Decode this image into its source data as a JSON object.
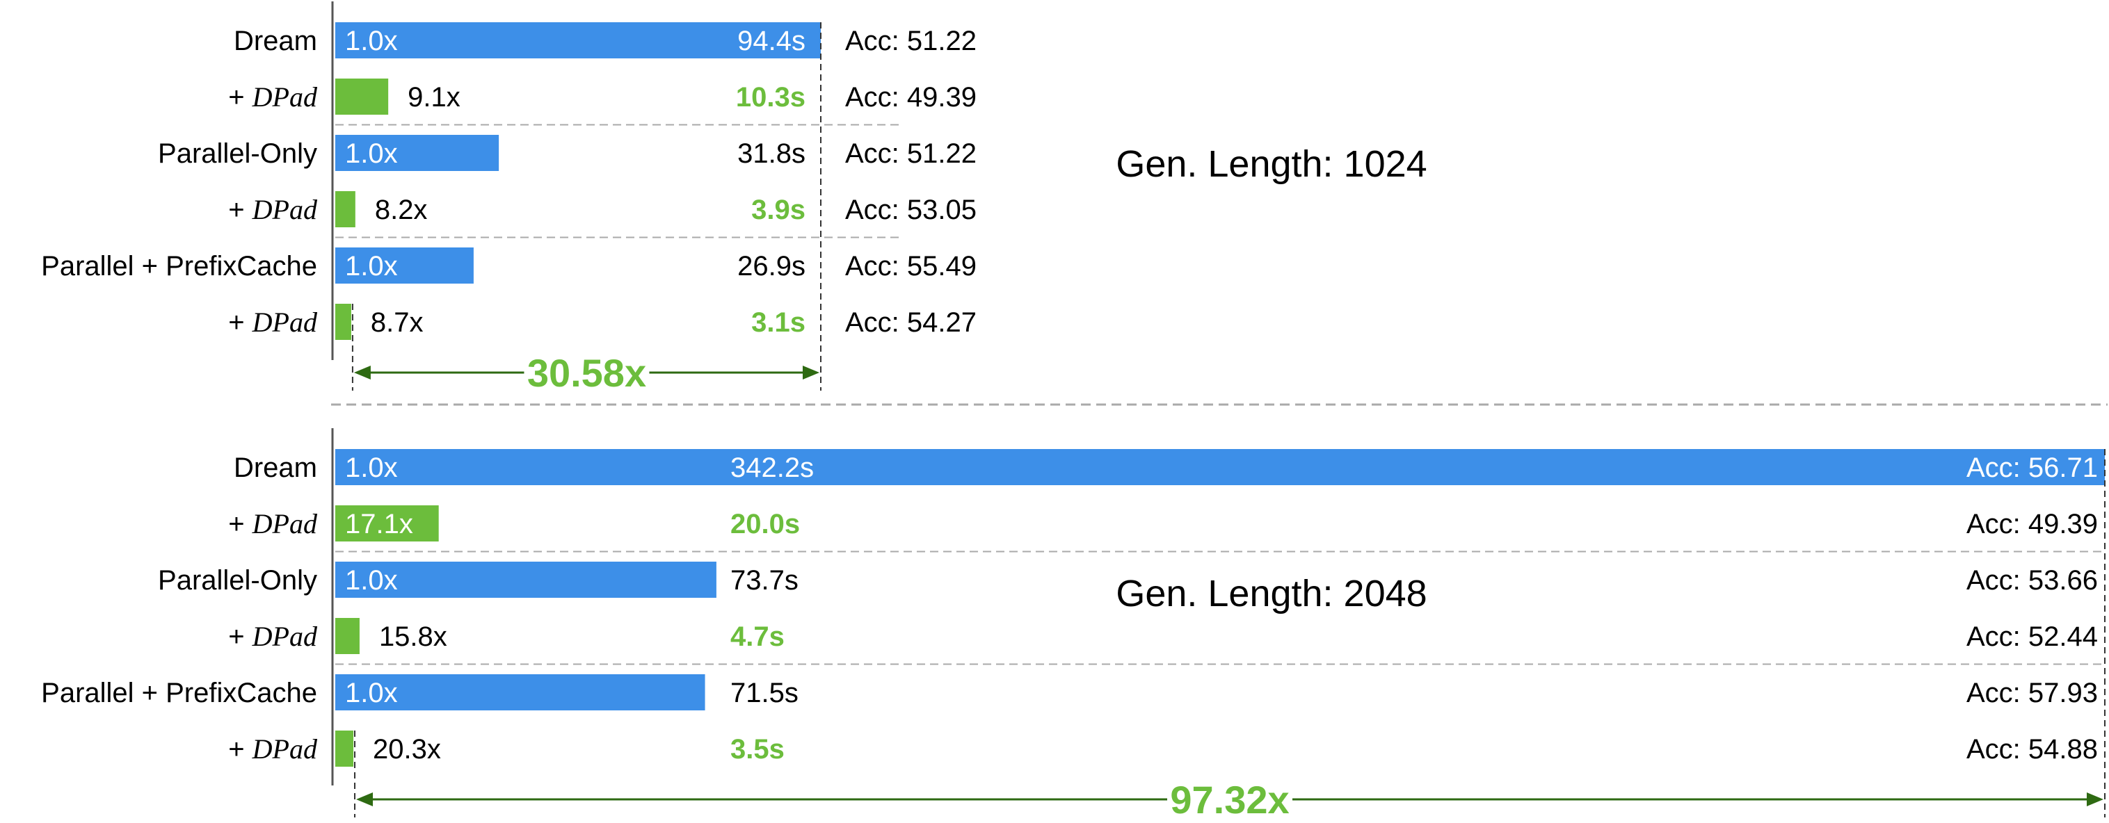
{
  "chart_data": [
    {
      "type": "bar",
      "title": "Gen. Length: 1024",
      "x_max_seconds": 94.4,
      "categories": [
        "Dream",
        "+ DPad",
        "Parallel-Only",
        "+ DPad",
        "Parallel + PrefixCache",
        "+ DPad"
      ],
      "rows": [
        {
          "label": "Dream",
          "dpad": false,
          "time": 94.4,
          "time_label": "94.4s",
          "speedup": "1.0x",
          "acc": "Acc: 51.22"
        },
        {
          "label": "+ ",
          "dpad": true,
          "dpad_name": "DPad",
          "time": 10.3,
          "time_label": "10.3s",
          "speedup": "9.1x",
          "acc": "Acc: 49.39"
        },
        {
          "label": "Parallel-Only",
          "dpad": false,
          "time": 31.8,
          "time_label": "31.8s",
          "speedup": "1.0x",
          "acc": "Acc: 51.22"
        },
        {
          "label": "+ ",
          "dpad": true,
          "dpad_name": "DPad",
          "time": 3.9,
          "time_label": "3.9s",
          "speedup": "8.2x",
          "acc": "Acc: 53.05"
        },
        {
          "label": "Parallel + PrefixCache",
          "dpad": false,
          "time": 26.9,
          "time_label": "26.9s",
          "speedup": "1.0x",
          "acc": "Acc: 55.49"
        },
        {
          "label": "+ ",
          "dpad": true,
          "dpad_name": "DPad",
          "time": 3.1,
          "time_label": "3.1s",
          "speedup": "8.7x",
          "acc": "Acc: 54.27"
        }
      ],
      "total_speedup": "30.58x"
    },
    {
      "type": "bar",
      "title": "Gen. Length: 2048",
      "x_max_seconds": 342.2,
      "categories": [
        "Dream",
        "+ DPad",
        "Parallel-Only",
        "+ DPad",
        "Parallel + PrefixCache",
        "+ DPad"
      ],
      "rows": [
        {
          "label": "Dream",
          "dpad": false,
          "time": 342.2,
          "time_label": "342.2s",
          "speedup": "1.0x",
          "acc": "Acc: 56.71"
        },
        {
          "label": "+ ",
          "dpad": true,
          "dpad_name": "DPad",
          "time": 20.0,
          "time_label": "20.0s",
          "speedup": "17.1x",
          "acc": "Acc: 49.39"
        },
        {
          "label": "Parallel-Only",
          "dpad": false,
          "time": 73.7,
          "time_label": "73.7s",
          "speedup": "1.0x",
          "acc": "Acc: 53.66"
        },
        {
          "label": "+ ",
          "dpad": true,
          "dpad_name": "DPad",
          "time": 4.7,
          "time_label": "4.7s",
          "speedup": "15.8x",
          "acc": "Acc: 52.44"
        },
        {
          "label": "Parallel + PrefixCache",
          "dpad": false,
          "time": 71.5,
          "time_label": "71.5s",
          "speedup": "1.0x",
          "acc": "Acc: 57.93"
        },
        {
          "label": "+ ",
          "dpad": true,
          "dpad_name": "DPad",
          "time": 3.5,
          "time_label": "3.5s",
          "speedup": "20.3x",
          "acc": "Acc: 54.88"
        }
      ],
      "total_speedup": "97.32x"
    }
  ],
  "colors": {
    "baseline": "#3d8fe8",
    "dpad": "#6cbd3c",
    "dpad_text": "#6cbd3c",
    "arrow": "#2e6a12",
    "divider": "#aaaaaa",
    "axis": "#555555"
  }
}
